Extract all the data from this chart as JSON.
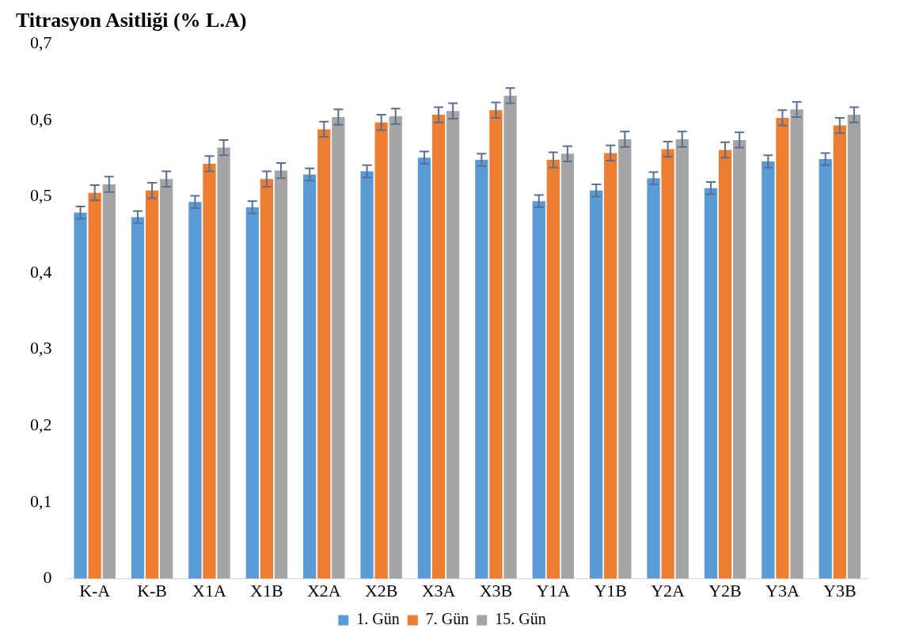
{
  "chart_data": {
    "type": "bar",
    "title": "Titrasyon Asitliği (% L.A)",
    "categories": [
      "K-A",
      "K-B",
      "X1A",
      "X1B",
      "X2A",
      "X2B",
      "X3A",
      "X3B",
      "Y1A",
      "Y1B",
      "Y2A",
      "Y2B",
      "Y3A",
      "Y3B"
    ],
    "series": [
      {
        "name": "1. Gün",
        "color": "#5b9bd5",
        "values": [
          0.479,
          0.473,
          0.493,
          0.486,
          0.529,
          0.533,
          0.551,
          0.548,
          0.494,
          0.508,
          0.524,
          0.511,
          0.546,
          0.549
        ],
        "errors": [
          0.008,
          0.008,
          0.008,
          0.008,
          0.008,
          0.008,
          0.008,
          0.008,
          0.008,
          0.008,
          0.008,
          0.008,
          0.008,
          0.008
        ]
      },
      {
        "name": "7. Gün",
        "color": "#ed7d31",
        "values": [
          0.505,
          0.508,
          0.543,
          0.523,
          0.588,
          0.597,
          0.607,
          0.613,
          0.548,
          0.557,
          0.562,
          0.561,
          0.603,
          0.593
        ],
        "errors": [
          0.01,
          0.01,
          0.01,
          0.01,
          0.01,
          0.01,
          0.01,
          0.01,
          0.01,
          0.01,
          0.01,
          0.01,
          0.01,
          0.01
        ]
      },
      {
        "name": "15. Gün",
        "color": "#a5a5a5",
        "values": [
          0.516,
          0.523,
          0.564,
          0.534,
          0.604,
          0.605,
          0.612,
          0.632,
          0.556,
          0.575,
          0.575,
          0.574,
          0.614,
          0.607
        ],
        "errors": [
          0.01,
          0.01,
          0.01,
          0.01,
          0.01,
          0.01,
          0.01,
          0.01,
          0.01,
          0.01,
          0.01,
          0.01,
          0.01,
          0.01
        ]
      }
    ],
    "ylim": [
      0,
      0.7
    ],
    "yticks": [
      {
        "value": 0,
        "label": "0"
      },
      {
        "value": 0.1,
        "label": "0,1"
      },
      {
        "value": 0.2,
        "label": "0,2"
      },
      {
        "value": 0.3,
        "label": "0,3"
      },
      {
        "value": 0.4,
        "label": "0,4"
      },
      {
        "value": 0.5,
        "label": "0,5"
      },
      {
        "value": 0.6,
        "label": "0,6"
      },
      {
        "value": 0.7,
        "label": "0,7"
      }
    ],
    "grid": false,
    "legend": "bottom"
  }
}
